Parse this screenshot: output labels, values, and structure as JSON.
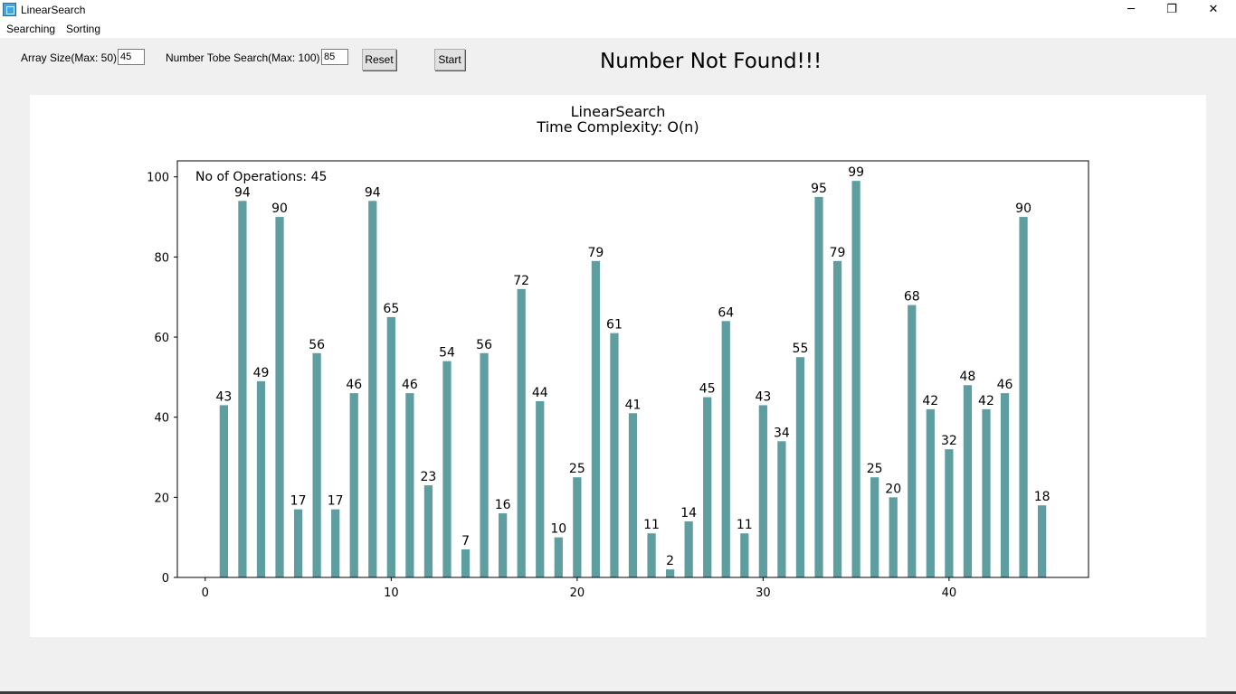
{
  "window": {
    "title": "LinearSearch",
    "minimize_glyph": "─",
    "maximize_glyph": "❐",
    "close_glyph": "✕"
  },
  "menu": [
    "Searching",
    "Sorting"
  ],
  "controls": {
    "array_size_label": "Array Size(Max: 50)",
    "array_size_value": "45",
    "search_label": "Number Tobe Search(Max: 100)",
    "search_value": "85",
    "reset_label": "Reset",
    "start_label": "Start"
  },
  "status_message": "Number Not Found!!!",
  "chart_data": {
    "type": "bar",
    "title": "LinearSearch",
    "subtitle": "Time Complexity: O(n)",
    "annotation": "No of Operations: 45",
    "xlabel": "",
    "ylabel": "",
    "x": [
      1,
      2,
      3,
      4,
      5,
      6,
      7,
      8,
      9,
      10,
      11,
      12,
      13,
      14,
      15,
      16,
      17,
      18,
      19,
      20,
      21,
      22,
      23,
      24,
      25,
      26,
      27,
      28,
      29,
      30,
      31,
      32,
      33,
      34,
      35,
      36,
      37,
      38,
      39,
      40,
      41,
      42,
      43,
      44,
      45
    ],
    "values": [
      43,
      94,
      49,
      90,
      17,
      56,
      17,
      46,
      94,
      65,
      46,
      23,
      54,
      7,
      56,
      16,
      72,
      44,
      10,
      25,
      79,
      61,
      41,
      11,
      2,
      14,
      45,
      64,
      11,
      43,
      34,
      55,
      95,
      79,
      99,
      25,
      20,
      68,
      42,
      32,
      48,
      42,
      46,
      90,
      18
    ],
    "xlim": [
      -1.5,
      47.5
    ],
    "ylim": [
      0,
      104
    ],
    "xticks": [
      0,
      10,
      20,
      30,
      40
    ],
    "yticks": [
      0,
      20,
      40,
      60,
      80,
      100
    ],
    "bar_color": "#5f9ea0",
    "grid": false,
    "data_labels": true
  }
}
